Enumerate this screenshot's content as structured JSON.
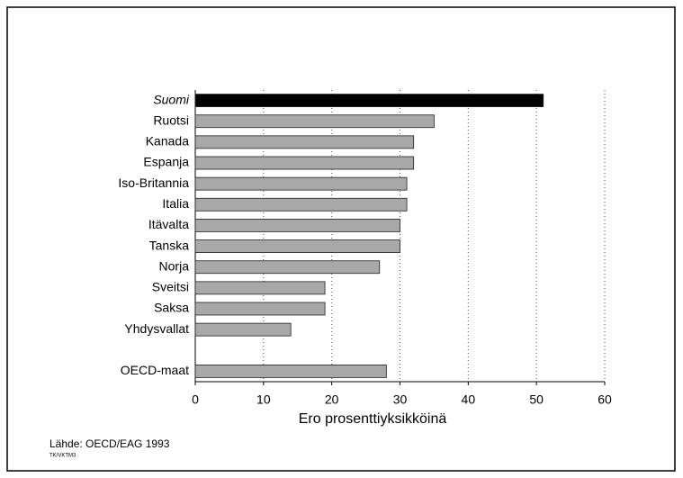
{
  "chart_data": {
    "type": "bar",
    "orientation": "horizontal",
    "categories": [
      "Suomi",
      "Ruotsi",
      "Kanada",
      "Espanja",
      "Iso-Britannia",
      "Italia",
      "Itävalta",
      "Tanska",
      "Norja",
      "Sveitsi",
      "Saksa",
      "Yhdysvallat",
      null,
      "OECD-maat"
    ],
    "values": [
      51,
      35,
      32,
      32,
      31,
      31,
      30,
      30,
      27,
      19,
      19,
      14,
      null,
      28
    ],
    "colors": [
      "#000000",
      "#a8a8a8",
      "#a8a8a8",
      "#a8a8a8",
      "#a8a8a8",
      "#a8a8a8",
      "#a8a8a8",
      "#a8a8a8",
      "#a8a8a8",
      "#a8a8a8",
      "#a8a8a8",
      "#a8a8a8",
      null,
      "#a8a8a8"
    ],
    "xlabel": "Ero prosenttiyksikköinä",
    "xlim": [
      0,
      60
    ],
    "xticks": [
      0,
      10,
      20,
      30,
      40,
      50,
      60
    ],
    "grid": true,
    "source": "Lähde: OECD/EAG 1993",
    "code": "TK/VKTM3"
  }
}
